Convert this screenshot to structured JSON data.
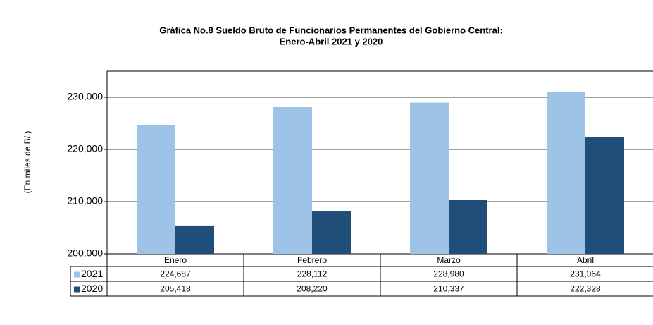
{
  "chart_data": {
    "type": "bar",
    "title": [
      "Gráfica No.8 Sueldo Bruto de Funcionarios Permanentes del Gobierno Central:",
      "Enero-Abril 2021 y 2020"
    ],
    "y_label": "(En miles de B/.)",
    "categories": [
      "Enero",
      "Febrero",
      "Marzo",
      "Abril"
    ],
    "series": [
      {
        "name": "2021",
        "color": "#9dc3e6",
        "values": [
          224687,
          228112,
          228980,
          231064
        ],
        "value_labels": [
          "224,687",
          "228,112",
          "228,980",
          "231,064"
        ]
      },
      {
        "name": "2020",
        "color": "#1f4e79",
        "values": [
          205418,
          208220,
          210337,
          222328
        ],
        "value_labels": [
          "205,418",
          "208,220",
          "210,337",
          "222,328"
        ]
      }
    ],
    "ylim": [
      200000,
      235000
    ],
    "yticks": [
      {
        "value": 200000,
        "label": "200,000"
      },
      {
        "value": 210000,
        "label": "210,000"
      },
      {
        "value": 220000,
        "label": "220,000"
      },
      {
        "value": 230000,
        "label": "230,000"
      }
    ],
    "grid": true
  }
}
